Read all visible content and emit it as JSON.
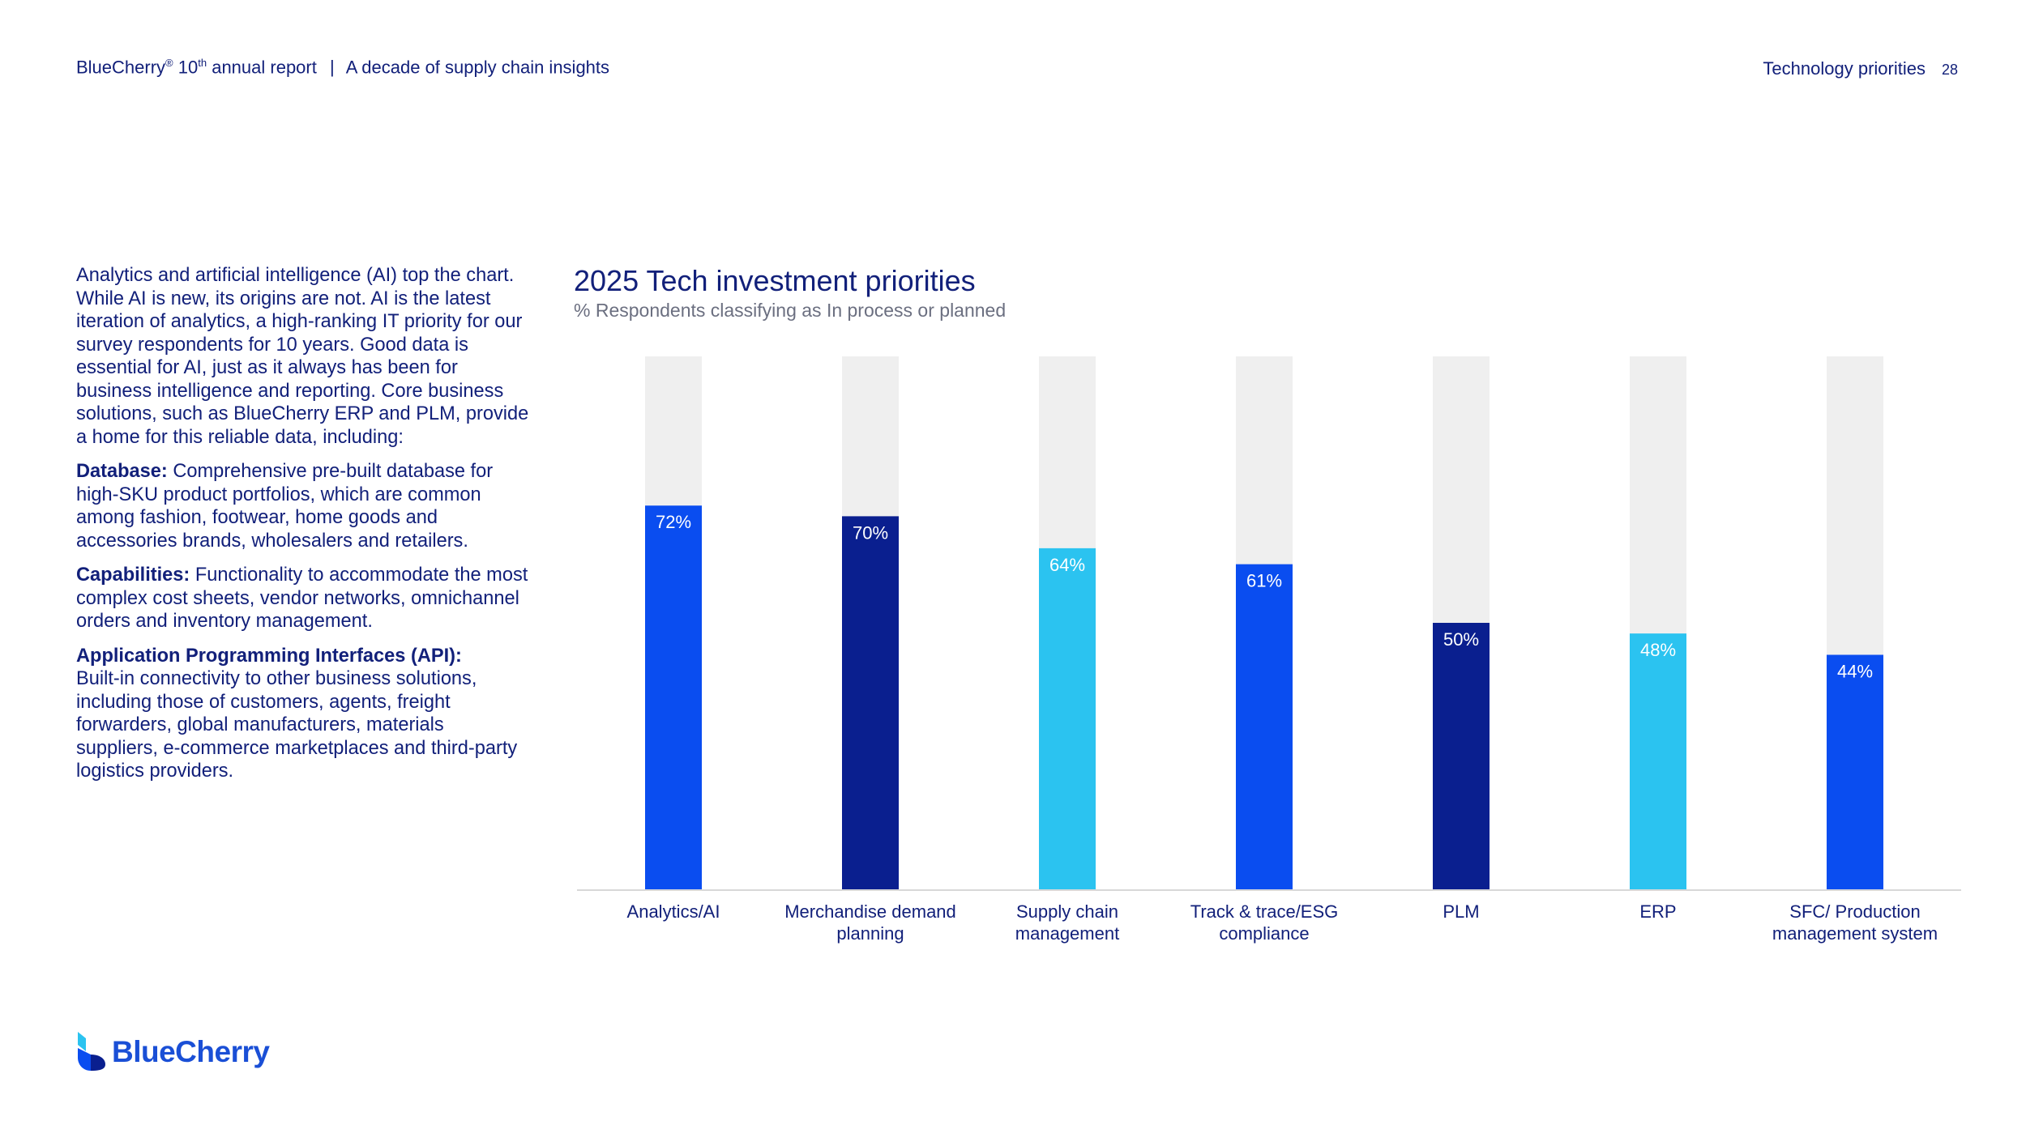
{
  "header": {
    "brand": "BlueCherry",
    "registered_mark": "®",
    "report_number": "10",
    "report_suffix": "th",
    "report_rest": " annual report",
    "separator": "|",
    "subtitle": "A decade of supply chain insights",
    "section": "Technology priorities",
    "page": "28"
  },
  "body": {
    "intro": "Analytics and artificial intelligence (AI) top the chart. While AI is new, its origins are not. AI is the latest iteration of analytics, a high-ranking IT priority for our survey respondents for 10 years. Good data is essential for AI, just as it always has been for business intelligence and reporting. Core business solutions, such as BlueCherry ERP and PLM, provide a home for this reliable data, including:",
    "items": [
      {
        "term": "Database:",
        "text": " Comprehensive pre-built database for high-SKU product portfolios, which are common among fashion, footwear, home goods and accessories brands, wholesalers and retailers."
      },
      {
        "term": "Capabilities:",
        "text": " Functionality to accommodate the most complex cost sheets, vendor networks, omnichannel orders and inventory management."
      },
      {
        "term": "Application Programming Interfaces (API):",
        "text": " Built-in connectivity to other business solutions, including those of customers, agents, freight forwarders, global manufacturers, materials suppliers, e-commerce marketplaces and third-party logistics providers."
      }
    ]
  },
  "chart_data": {
    "type": "bar",
    "title": "2025 Tech investment priorities",
    "subtitle": "% Respondents classifying as In process or planned",
    "categories": [
      [
        "Analytics/AI"
      ],
      [
        "Merchandise demand",
        "planning"
      ],
      [
        "Supply chain",
        "management"
      ],
      [
        "Track & trace/ESG",
        "compliance"
      ],
      [
        "PLM"
      ],
      [
        "ERP"
      ],
      [
        "SFC/ Production",
        "management system"
      ]
    ],
    "values": [
      72,
      70,
      64,
      61,
      50,
      48,
      44
    ],
    "labels": [
      "72%",
      "70%",
      "64%",
      "61%",
      "50%",
      "48%",
      "44%"
    ],
    "bar_colors": [
      "#0a4df0",
      "#0a1f8f",
      "#2bc3f0",
      "#0a4df0",
      "#0a1f8f",
      "#2bc3f0",
      "#0a4df0"
    ],
    "track_color": "#efefef",
    "ylim": [
      0,
      100
    ],
    "grid": false,
    "legend": "none"
  },
  "footer": {
    "logo_text": "BlueCherry"
  },
  "colors": {
    "text": "#12207a",
    "subtitle": "#6b6f80",
    "brand": "#1a4fd6"
  }
}
